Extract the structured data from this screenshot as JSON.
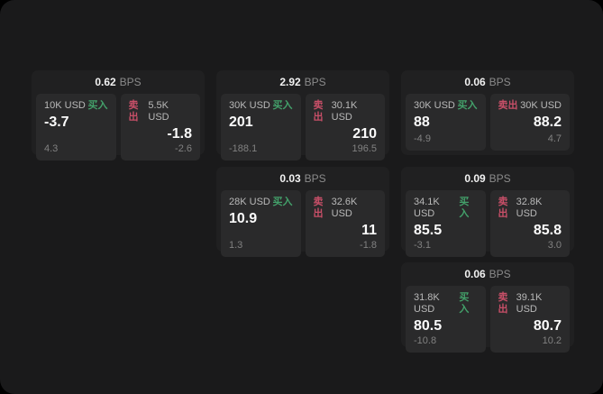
{
  "labels": {
    "bps_unit": "BPS",
    "buy": "买入",
    "sell": "卖出"
  },
  "colors": {
    "buy": "#43a06a",
    "sell": "#c84f68",
    "panel": "#1a1a1b",
    "card": "#202021",
    "pane": "#2a2a2b"
  },
  "cards": [
    {
      "bps": "0.62",
      "buy": {
        "amount": "10K USD",
        "price": "-3.7",
        "delta": "4.3"
      },
      "sell": {
        "amount": "5.5K USD",
        "price": "-1.8",
        "delta": "-2.6"
      }
    },
    {
      "bps": "2.92",
      "buy": {
        "amount": "30K USD",
        "price": "201",
        "delta": "-188.1"
      },
      "sell": {
        "amount": "30.1K USD",
        "price": "210",
        "delta": "196.5"
      }
    },
    {
      "bps": "0.06",
      "buy": {
        "amount": "30K USD",
        "price": "88",
        "delta": "-4.9"
      },
      "sell": {
        "amount": "30K USD",
        "price": "88.2",
        "delta": "4.7"
      }
    },
    {
      "bps": "0.03",
      "buy": {
        "amount": "28K USD",
        "price": "10.9",
        "delta": "1.3"
      },
      "sell": {
        "amount": "32.6K USD",
        "price": "11",
        "delta": "-1.8"
      }
    },
    {
      "bps": "0.09",
      "buy": {
        "amount": "34.1K USD",
        "price": "85.5",
        "delta": "-3.1"
      },
      "sell": {
        "amount": "32.8K USD",
        "price": "85.8",
        "delta": "3.0"
      }
    },
    {
      "bps": "0.06",
      "buy": {
        "amount": "31.8K USD",
        "price": "80.5",
        "delta": "-10.8"
      },
      "sell": {
        "amount": "39.1K USD",
        "price": "80.7",
        "delta": "10.2"
      }
    }
  ]
}
